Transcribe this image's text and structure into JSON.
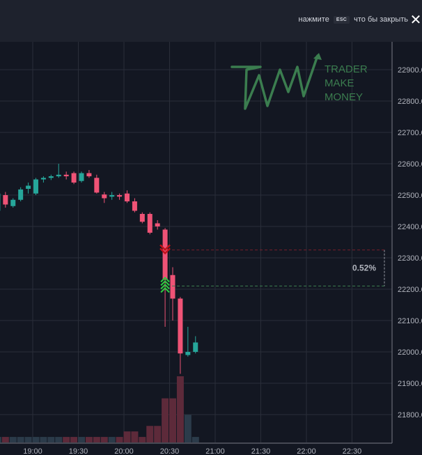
{
  "header": {
    "hint_before": "нажмите",
    "esc_key": "ESC",
    "hint_after": "что бы закрыть",
    "close_icon": "close-icon"
  },
  "logo": {
    "line1": "TRADER",
    "line2": "MAKE",
    "line3": "MONEY",
    "color": "#3b7d4f"
  },
  "colors": {
    "background": "#131722",
    "grid": "#2a2e39",
    "up": "#26a69a",
    "down": "#ef5376",
    "down_volume": "#5d2a3a",
    "up_volume": "#2b3b4a",
    "sell_marker": "#c2111a",
    "buy_marker": "#2ecc40",
    "range_label": "#b2b5be"
  },
  "chart_data": {
    "type": "candlestick",
    "x_axis_labels": [
      "19:00",
      "19:30",
      "20:00",
      "20:30",
      "21:00",
      "21:30",
      "22:00",
      "22:30"
    ],
    "y_axis_labels": [
      "22900.0",
      "22800.0",
      "22700.0",
      "22600.0",
      "22500.0",
      "22400.0",
      "22300.0",
      "22200.0",
      "22100.0",
      "22000.0",
      "21900.0",
      "21800.0"
    ],
    "ylim": [
      21735,
      22960
    ],
    "x_minutes_start": "18:35",
    "interval_minutes": 5,
    "candles": [
      {
        "o": 22450,
        "h": 22510,
        "l": 22440,
        "c": 22505
      },
      {
        "o": 22500,
        "h": 22510,
        "l": 22460,
        "c": 22470
      },
      {
        "o": 22465,
        "h": 22490,
        "l": 22460,
        "c": 22485
      },
      {
        "o": 22485,
        "h": 22525,
        "l": 22480,
        "c": 22518
      },
      {
        "o": 22520,
        "h": 22540,
        "l": 22505,
        "c": 22530
      },
      {
        "o": 22505,
        "h": 22555,
        "l": 22500,
        "c": 22550
      },
      {
        "o": 22550,
        "h": 22560,
        "l": 22540,
        "c": 22555
      },
      {
        "o": 22555,
        "h": 22565,
        "l": 22548,
        "c": 22560
      },
      {
        "o": 22560,
        "h": 22600,
        "l": 22555,
        "c": 22565
      },
      {
        "o": 22565,
        "h": 22575,
        "l": 22550,
        "c": 22560
      },
      {
        "o": 22570,
        "h": 22575,
        "l": 22535,
        "c": 22540
      },
      {
        "o": 22545,
        "h": 22575,
        "l": 22540,
        "c": 22570
      },
      {
        "o": 22570,
        "h": 22580,
        "l": 22555,
        "c": 22560
      },
      {
        "o": 22555,
        "h": 22565,
        "l": 22505,
        "c": 22508
      },
      {
        "o": 22502,
        "h": 22510,
        "l": 22475,
        "c": 22490
      },
      {
        "o": 22495,
        "h": 22510,
        "l": 22485,
        "c": 22500
      },
      {
        "o": 22500,
        "h": 22505,
        "l": 22485,
        "c": 22495
      },
      {
        "o": 22505,
        "h": 22515,
        "l": 22475,
        "c": 22480
      },
      {
        "o": 22480,
        "h": 22490,
        "l": 22445,
        "c": 22450
      },
      {
        "o": 22440,
        "h": 22445,
        "l": 22410,
        "c": 22415
      },
      {
        "o": 22440,
        "h": 22445,
        "l": 22375,
        "c": 22380
      },
      {
        "o": 22410,
        "h": 22420,
        "l": 22390,
        "c": 22400
      },
      {
        "o": 22390,
        "h": 22395,
        "l": 22080,
        "c": 22230
      },
      {
        "o": 22245,
        "h": 22270,
        "l": 22100,
        "c": 22170
      },
      {
        "o": 22170,
        "h": 22175,
        "l": 21930,
        "c": 21995
      },
      {
        "o": 21990,
        "h": 22080,
        "l": 21985,
        "c": 22000
      },
      {
        "o": 22000,
        "h": 22050,
        "l": 21995,
        "c": 22030
      }
    ],
    "volumes": [
      1,
      1,
      1,
      1,
      1,
      1,
      1,
      1,
      1,
      1,
      1,
      1,
      1,
      1,
      1,
      1,
      1,
      2,
      2,
      1,
      3,
      3,
      8,
      8,
      12,
      5,
      1
    ],
    "range_marker": {
      "high": 22325,
      "low": 22210,
      "label": "0.52%"
    },
    "sell_marker_price": 22330,
    "buy_marker_price": 22210,
    "grid": true
  }
}
